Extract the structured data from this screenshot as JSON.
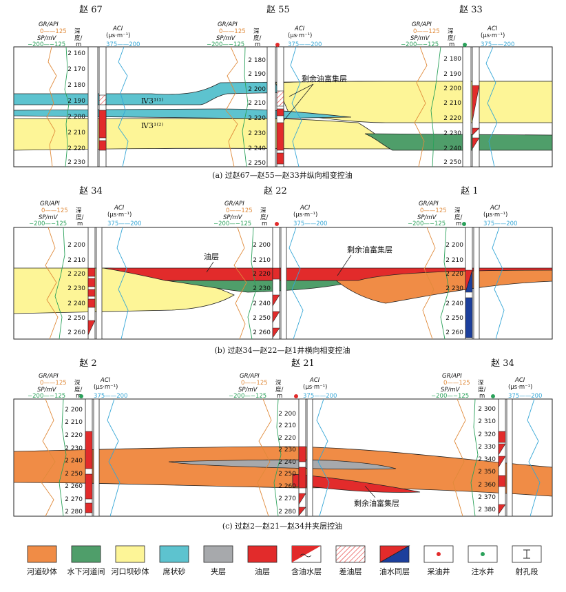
{
  "panels": [
    {
      "caption": "(a) 过赵67—赵55—赵33井纵向相变控油",
      "wells": [
        {
          "name": "赵 67",
          "type": "",
          "depths": [
            "2 160",
            "2 170",
            "2 180",
            "2 190",
            "2 200",
            "2 210",
            "2 220",
            "2 230"
          ]
        },
        {
          "name": "赵 55",
          "type": "producer",
          "depths": [
            "2 180",
            "2 190",
            "2 200",
            "2 210",
            "2 220",
            "2 230",
            "2 240",
            "2 250"
          ]
        },
        {
          "name": "赵 33",
          "type": "injector",
          "depths": [
            "2 180",
            "2 190",
            "2 200",
            "2 210",
            "2 220",
            "2 230",
            "2 240",
            "2 250"
          ]
        }
      ],
      "labels": [
        "Ⅳ3¹⁽¹⁾",
        "Ⅳ3¹⁽²⁾",
        "剩余油富集层"
      ]
    },
    {
      "caption": "(b) 过赵34—赵22—赵1井横向相变控油",
      "wells": [
        {
          "name": "赵 34",
          "type": "",
          "depths": [
            "2 200",
            "2 210",
            "2 220",
            "2 230",
            "2 240",
            "2 250",
            "2 260"
          ]
        },
        {
          "name": "赵 22",
          "type": "producer",
          "depths": [
            "2 200",
            "2 210",
            "2 220",
            "2 230",
            "2 240",
            "2 250",
            "2 260"
          ]
        },
        {
          "name": "赵 1",
          "type": "injector",
          "depths": [
            "2 200",
            "2 210",
            "2 220",
            "2 230",
            "2 240",
            "2 250",
            "2 260"
          ]
        }
      ],
      "labels": [
        "油层",
        "剩余油富集层"
      ]
    },
    {
      "caption": "(c) 过赵2—赵21—赵34井夹层控油",
      "wells": [
        {
          "name": "赵 2",
          "type": "injector",
          "depths": [
            "2 200",
            "2 210",
            "2 220",
            "2 230",
            "2 240",
            "2 250",
            "2 260",
            "2 270",
            "2 280"
          ]
        },
        {
          "name": "赵 21",
          "type": "producer",
          "depths": [
            "2 200",
            "2 210",
            "2 220",
            "2 230",
            "2 240",
            "2 250",
            "2 260",
            "2 270",
            "2 280"
          ]
        },
        {
          "name": "赵 34",
          "type": "injector",
          "depths": [
            "2 300",
            "2 310",
            "2 320",
            "2 330",
            "2 340",
            "2 350",
            "2 360",
            "2 370",
            "2 380"
          ]
        }
      ],
      "labels": [
        "剩余油富集层"
      ]
    }
  ],
  "log_header": {
    "gr": "GR/API",
    "gr_scale": "0——125",
    "sp": "SP/mV",
    "sp_scale": "−200—−125",
    "depth1": "深",
    "depth2": "度/",
    "depth_unit": "m",
    "ac": "ACI",
    "ac_unit": "(μs·m⁻¹)",
    "ac_scale": "375——200"
  },
  "legend": [
    {
      "label": "河道砂体",
      "color": "#f08c46"
    },
    {
      "label": "水下河道间",
      "color": "#4f9e6a"
    },
    {
      "label": "河口坝砂体",
      "color": "#fdf597"
    },
    {
      "label": "席状砂",
      "color": "#5dc3cf"
    },
    {
      "label": "夹层",
      "color": "#a7a9ac"
    },
    {
      "label": "油层",
      "color": "#e22b2b"
    },
    {
      "label": "含油水层",
      "color": "#ffffff"
    },
    {
      "label": "差油层",
      "color": "#ffffff"
    },
    {
      "label": "油水同层",
      "color": "#e22b2b"
    },
    {
      "label": "采油井",
      "color": "#e22b2b"
    },
    {
      "label": "注水井",
      "color": "#2aa15a"
    },
    {
      "label": "射孔段",
      "color": "#ffffff"
    }
  ]
}
